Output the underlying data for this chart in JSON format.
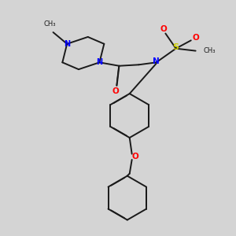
{
  "bg_color": "#d4d4d4",
  "bond_color": "#1a1a1a",
  "N_color": "#0000ff",
  "O_color": "#ff0000",
  "S_color": "#cccc00",
  "line_width": 1.4,
  "dbo": 0.012,
  "figsize": [
    3.0,
    3.0
  ],
  "dpi": 100,
  "xlim": [
    0,
    10
  ],
  "ylim": [
    0,
    10
  ]
}
